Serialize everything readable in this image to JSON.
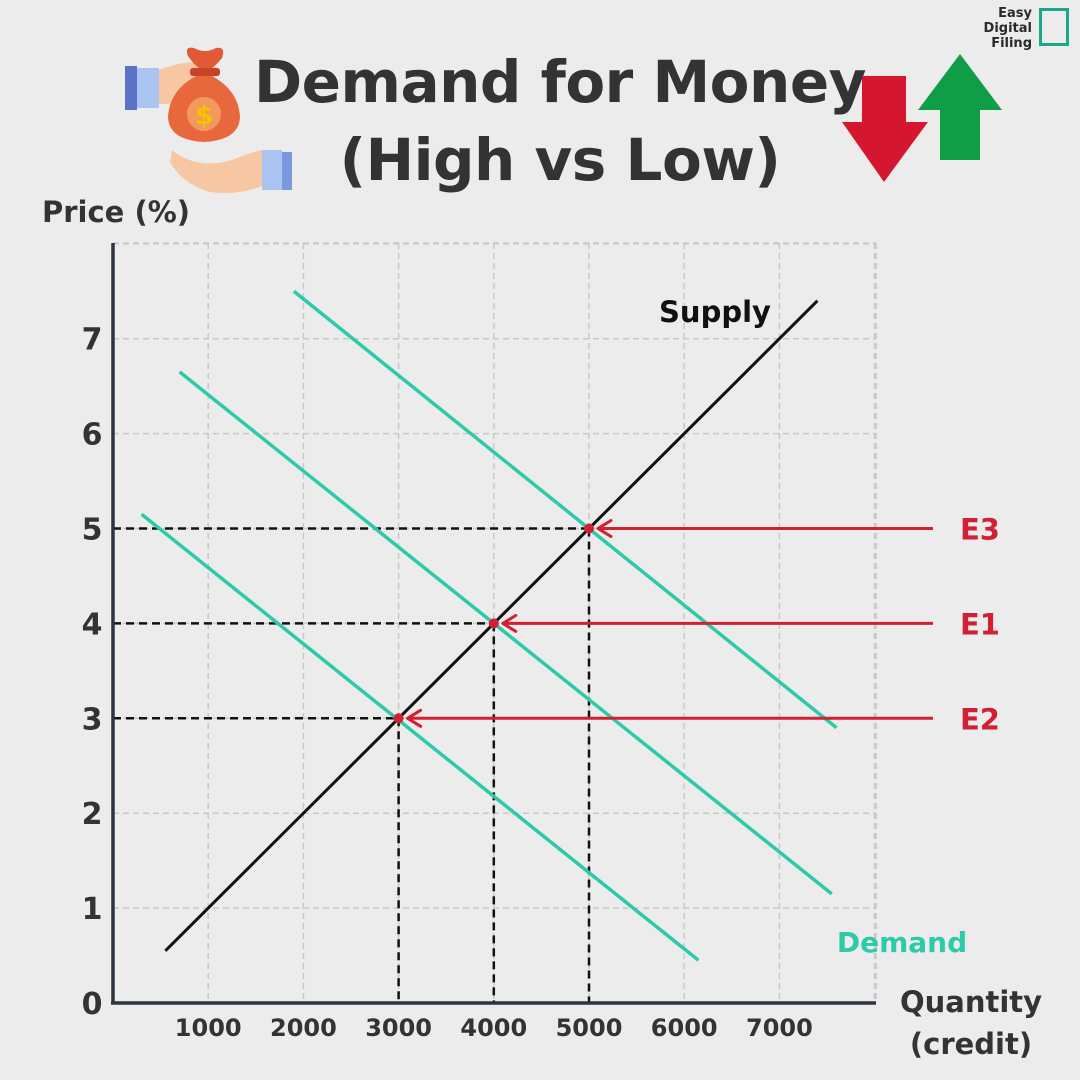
{
  "header": {
    "title_line_1": "Demand for Money",
    "title_line_2": "(High vs Low)",
    "brand_line_1": "Easy",
    "brand_line_2": "Digital",
    "brand_line_3": "Filing"
  },
  "colors": {
    "supply": "#111111",
    "demand": "#2ccaa8",
    "equilibrium": "#d11f33",
    "grid": "#c8c8c8",
    "axis": "#2b3440",
    "down_arrow": "#d4172e",
    "up_arrow": "#0f9e45",
    "brand": "#1aa78c"
  },
  "icons": [
    "money-bag-icon",
    "giving-hand-icon",
    "receiving-hand-icon",
    "down-arrow-icon",
    "up-arrow-icon"
  ],
  "chart_data": {
    "type": "line",
    "ylabel": "Price (%)",
    "xlabel_line_1": "Quantity",
    "xlabel_line_2": "(credit)",
    "xlim": [
      0,
      8000
    ],
    "ylim": [
      0,
      8
    ],
    "x_ticks": [
      "1000",
      "2000",
      "3000",
      "4000",
      "5000",
      "6000",
      "7000"
    ],
    "y_ticks": [
      "0",
      "1",
      "2",
      "3",
      "4",
      "5",
      "6",
      "7"
    ],
    "grid": true,
    "series": [
      {
        "name": "Supply",
        "kind": "supply",
        "points": [
          [
            550,
            0.55
          ],
          [
            7400,
            7.4
          ]
        ]
      },
      {
        "name": "Demand",
        "kind": "demand",
        "points": [
          [
            300,
            5.15
          ],
          [
            6150,
            0.45
          ]
        ]
      },
      {
        "name": "",
        "kind": "demand",
        "points": [
          [
            700,
            6.65
          ],
          [
            7550,
            1.15
          ]
        ]
      },
      {
        "name": "",
        "kind": "demand",
        "points": [
          [
            1900,
            7.5
          ],
          [
            7600,
            2.9
          ]
        ]
      }
    ],
    "equilibria": [
      {
        "label": "E3",
        "x": 5000,
        "y": 5
      },
      {
        "label": "E1",
        "x": 4000,
        "y": 4
      },
      {
        "label": "E2",
        "x": 3000,
        "y": 3
      }
    ]
  }
}
